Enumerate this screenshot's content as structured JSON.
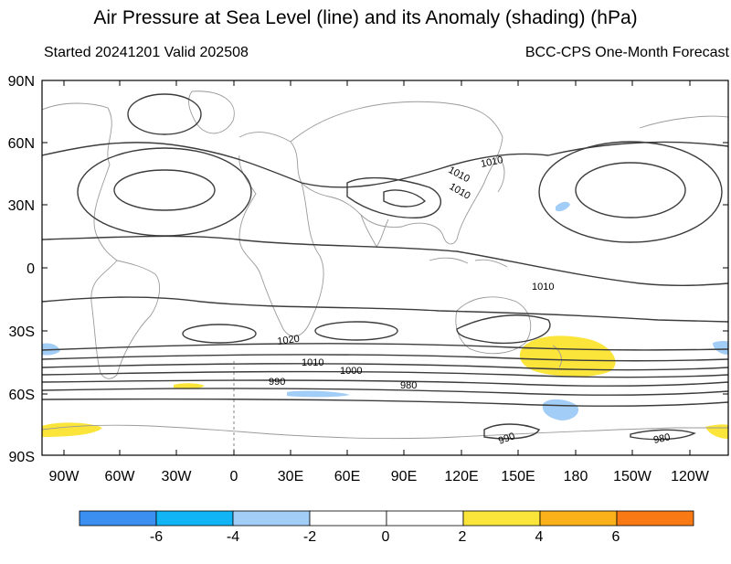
{
  "title": "Air Pressure at Sea Level (line) and its Anomaly (shading) (hPa)",
  "subtitle_left": "Started 20241201  Valid 202508",
  "subtitle_right": "BCC-CPS One-Month Forecast",
  "map": {
    "lat_labels": [
      "90N",
      "60N",
      "30N",
      "0",
      "30S",
      "60S",
      "90S"
    ],
    "lon_labels": [
      "90W",
      "60W",
      "30W",
      "0",
      "30E",
      "60E",
      "90E",
      "120E",
      "150E",
      "180",
      "150W",
      "120W"
    ],
    "contour_labels": [
      "1010",
      "1010",
      "1010",
      "1010",
      "1020",
      "1010",
      "1000",
      "990",
      "980",
      "990",
      "980"
    ]
  },
  "colorbar": {
    "tick_labels": [
      "-6",
      "-4",
      "-2",
      "0",
      "2",
      "4",
      "6"
    ],
    "colors": [
      "#3a8ff0",
      "#11b4f4",
      "#a2cdf7",
      "#ffffff",
      "#ffffff",
      "#fbe53a",
      "#fbb21a",
      "#f97a14"
    ]
  },
  "anomaly_colors": {
    "negative_weak": "#a2cdf7",
    "positive_weak": "#fbe53a"
  }
}
